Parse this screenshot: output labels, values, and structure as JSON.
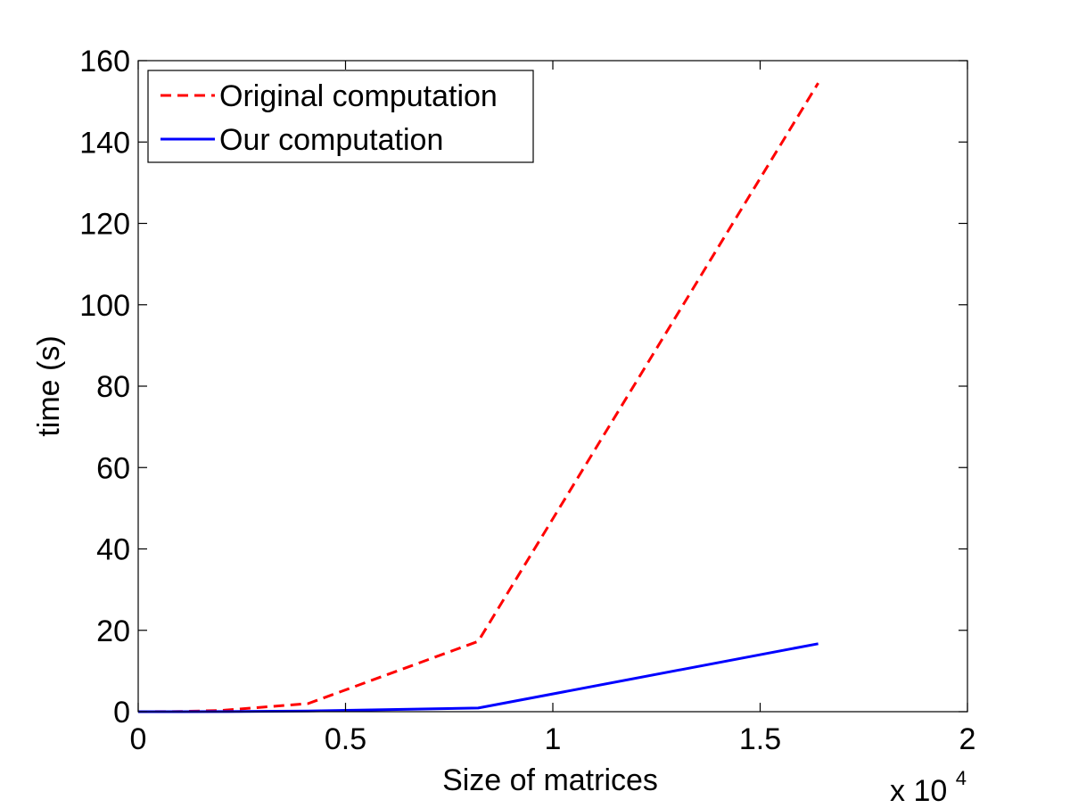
{
  "chart_data": {
    "type": "line",
    "title": "",
    "xlabel": "Size of matrices",
    "ylabel": "time (s)",
    "x_exponent_label": {
      "base": "x 10",
      "power": "4"
    },
    "xlim": [
      0,
      20000
    ],
    "ylim": [
      0,
      160
    ],
    "xticks": [
      0,
      5000,
      10000,
      15000,
      20000
    ],
    "xtick_labels": [
      "0",
      "0.5",
      "1",
      "1.5",
      "2"
    ],
    "yticks": [
      0,
      20,
      40,
      60,
      80,
      100,
      120,
      140,
      160
    ],
    "ytick_labels": [
      "0",
      "20",
      "40",
      "60",
      "80",
      "100",
      "120",
      "140",
      "160"
    ],
    "grid": false,
    "legend_position": "top-left",
    "series": [
      {
        "name": "Original computation",
        "color": "#ff0000",
        "line_style": "dashed",
        "x": [
          0,
          1000,
          2000,
          4100,
          8200,
          16400
        ],
        "y": [
          0,
          0.05,
          0.3,
          2,
          17.3,
          154.5
        ]
      },
      {
        "name": "Our computation",
        "color": "#0000ff",
        "line_style": "solid",
        "x": [
          0,
          1000,
          2000,
          4100,
          8200,
          16400
        ],
        "y": [
          0,
          0.01,
          0.03,
          0.15,
          0.9,
          16.7
        ]
      }
    ]
  }
}
